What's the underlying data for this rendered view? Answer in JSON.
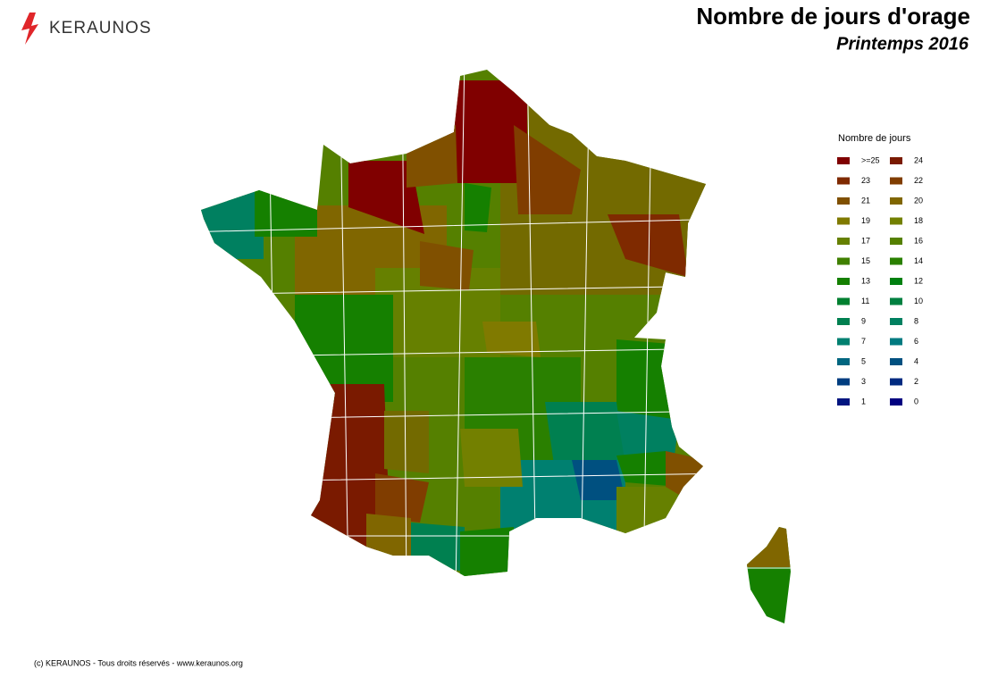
{
  "header": {
    "logo": "KERAUNOS",
    "title": "Nombre de jours d'orage",
    "subtitle": "Printemps 2016"
  },
  "legend": {
    "title": "Nombre de jours",
    "items": [
      {
        "label": ">=25",
        "color": "#800000"
      },
      {
        "label": "24",
        "color": "#7a1a00"
      },
      {
        "label": "23",
        "color": "#7f2a00"
      },
      {
        "label": "22",
        "color": "#803d00"
      },
      {
        "label": "21",
        "color": "#805000"
      },
      {
        "label": "20",
        "color": "#806600"
      },
      {
        "label": "19",
        "color": "#807a00"
      },
      {
        "label": "18",
        "color": "#738000"
      },
      {
        "label": "17",
        "color": "#668000"
      },
      {
        "label": "16",
        "color": "#558000"
      },
      {
        "label": "15",
        "color": "#408000"
      },
      {
        "label": "14",
        "color": "#2a8000"
      },
      {
        "label": "13",
        "color": "#158000"
      },
      {
        "label": "12",
        "color": "#008010"
      },
      {
        "label": "11",
        "color": "#008030"
      },
      {
        "label": "10",
        "color": "#008040"
      },
      {
        "label": "9",
        "color": "#008050"
      },
      {
        "label": "8",
        "color": "#008060"
      },
      {
        "label": "7",
        "color": "#008070"
      },
      {
        "label": "6",
        "color": "#007a80"
      },
      {
        "label": "5",
        "color": "#006680"
      },
      {
        "label": "4",
        "color": "#005080"
      },
      {
        "label": "3",
        "color": "#003d80"
      },
      {
        "label": "2",
        "color": "#002a80"
      },
      {
        "label": "1",
        "color": "#001580"
      },
      {
        "label": "0",
        "color": "#000080"
      }
    ]
  },
  "footer": "(c) KERAUNOS - Tous droits réservés - www.keraunos.org"
}
